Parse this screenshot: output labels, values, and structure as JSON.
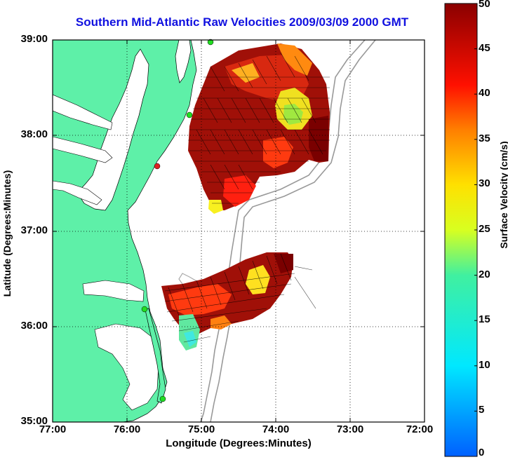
{
  "title": "Southern Mid-Atlantic Raw Velocities 2009/03/09 2000 GMT",
  "x_axis": {
    "label": "Longitude (Degrees:Minutes)",
    "ticks": [
      "77:00",
      "76:00",
      "75:00",
      "74:00",
      "73:00",
      "72:00"
    ]
  },
  "y_axis": {
    "label": "Latitude (Degrees:Minutes)",
    "ticks": [
      "39:00",
      "38:00",
      "37:00",
      "36:00",
      "35:00"
    ]
  },
  "colorbar": {
    "label": "Surface Velocity (cm/s)",
    "ticks": [
      "50",
      "45",
      "40",
      "35",
      "30",
      "25",
      "20",
      "15",
      "10",
      "5",
      "0"
    ],
    "range": [
      0,
      50
    ]
  },
  "map": {
    "lon_range": [
      -77,
      -72
    ],
    "lat_range": [
      35,
      39
    ],
    "grid": "dotted",
    "land_color": "#5ef0a8",
    "water_color": "#ffffff",
    "station_markers": [
      {
        "color": "#22dd22",
        "lon": -74.97,
        "lat": 38.98
      },
      {
        "color": "#22dd22",
        "lon": -75.15,
        "lat": 38.22
      },
      {
        "color": "#dd2222",
        "lon": -75.52,
        "lat": 37.68
      },
      {
        "color": "#22dd22",
        "lon": -75.7,
        "lat": 36.18
      },
      {
        "color": "#22dd22",
        "lon": -75.45,
        "lat": 35.24
      }
    ]
  }
}
